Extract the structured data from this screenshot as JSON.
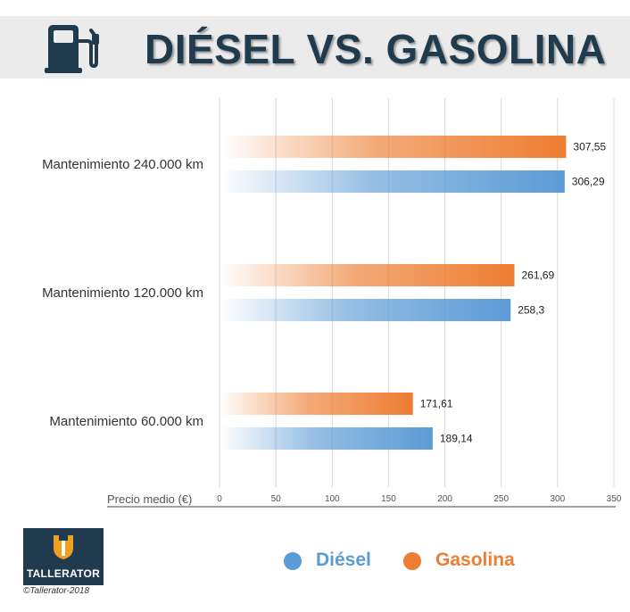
{
  "header": {
    "title": "DIÉSEL VS. GASOLINA",
    "icon": "fuel-pump-icon"
  },
  "colors": {
    "diesel": "#5b9bd5",
    "gasolina": "#ed7d31",
    "title": "#1f3b4d",
    "header_bg": "#ebebeb",
    "logo_bg": "#1f3b4d",
    "logo_accent": "#f0a020"
  },
  "chart_data": {
    "type": "bar",
    "orientation": "horizontal",
    "categories": [
      "Mantenimiento 240.000 km",
      "Mantenimiento 120.000 km",
      "Mantenimiento 60.000 km"
    ],
    "series": [
      {
        "name": "Gasolina",
        "values": [
          307.55,
          261.69,
          171.61
        ],
        "labels": [
          "307,55",
          "261,69",
          "171,61"
        ]
      },
      {
        "name": "Diésel",
        "values": [
          306.29,
          258.3,
          189.14
        ],
        "labels": [
          "306,29",
          "258,3",
          "189,14"
        ]
      }
    ],
    "xlabel": "Precio medio (€)",
    "xlim": [
      0,
      350
    ],
    "xticks": [
      0,
      50,
      100,
      150,
      200,
      250,
      300,
      350
    ],
    "grid": true,
    "legend": "bottom"
  },
  "legend": {
    "diesel": "Diésel",
    "gasolina": "Gasolina"
  },
  "logo": {
    "text": "TALLERATOR",
    "copyright": "©Tallerator-2018"
  }
}
